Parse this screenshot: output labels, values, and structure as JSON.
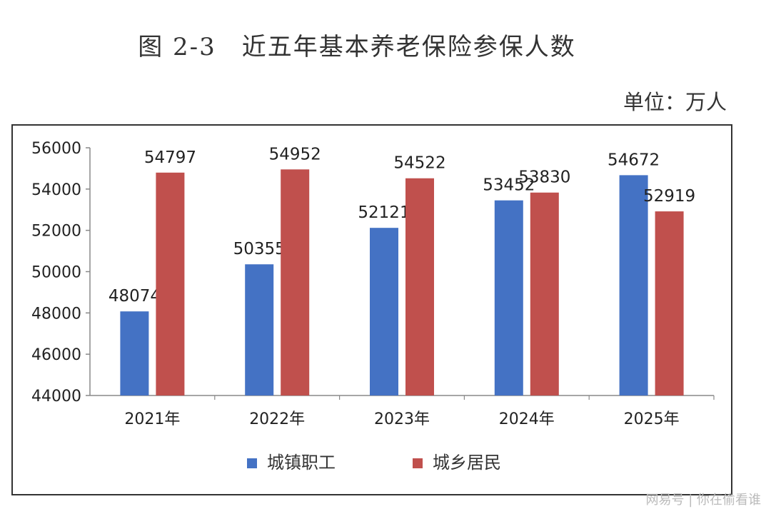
{
  "title": "图 2-3　近五年基本养老保险参保人数",
  "unit_label": "单位：万人",
  "watermark": "网易号 | 你在偷看谁",
  "colors": {
    "series1": "#4472C4",
    "series2": "#C0504D",
    "axis": "#888888"
  },
  "chart_data": {
    "type": "bar",
    "categories": [
      "2021年",
      "2022年",
      "2023年",
      "2024年",
      "2025年"
    ],
    "series": [
      {
        "name": "城镇职工",
        "values": [
          48074,
          50355,
          52121,
          53452,
          54672
        ]
      },
      {
        "name": "城乡居民",
        "values": [
          54797,
          54952,
          54522,
          53830,
          52919
        ]
      }
    ],
    "ylim": [
      44000,
      56000
    ],
    "yticks": [
      44000,
      46000,
      48000,
      50000,
      52000,
      54000,
      56000
    ],
    "grid": false,
    "legend": "bottom"
  }
}
